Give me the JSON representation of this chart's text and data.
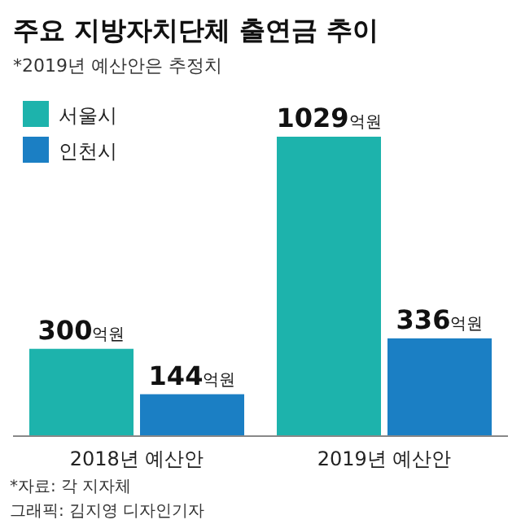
{
  "chart_data": {
    "type": "bar",
    "title": "주요 지방자치단체 출연금 추이",
    "subtitle": "*2019년 예산안은 추정치",
    "categories": [
      "2018년 예산안",
      "2019년 예산안"
    ],
    "series": [
      {
        "name": "서울시",
        "color": "#1db3ac",
        "values": [
          300,
          1029
        ],
        "value_labels": [
          "300억원",
          "1029억원"
        ]
      },
      {
        "name": "인천시",
        "color": "#1b7fc4",
        "values": [
          144,
          336
        ],
        "value_labels": [
          "144억원",
          "336억원"
        ]
      }
    ],
    "legend": "top left",
    "annotations": [
      "*자료: 각 지자체",
      "그래픽: 김지영 디자인기자"
    ]
  }
}
